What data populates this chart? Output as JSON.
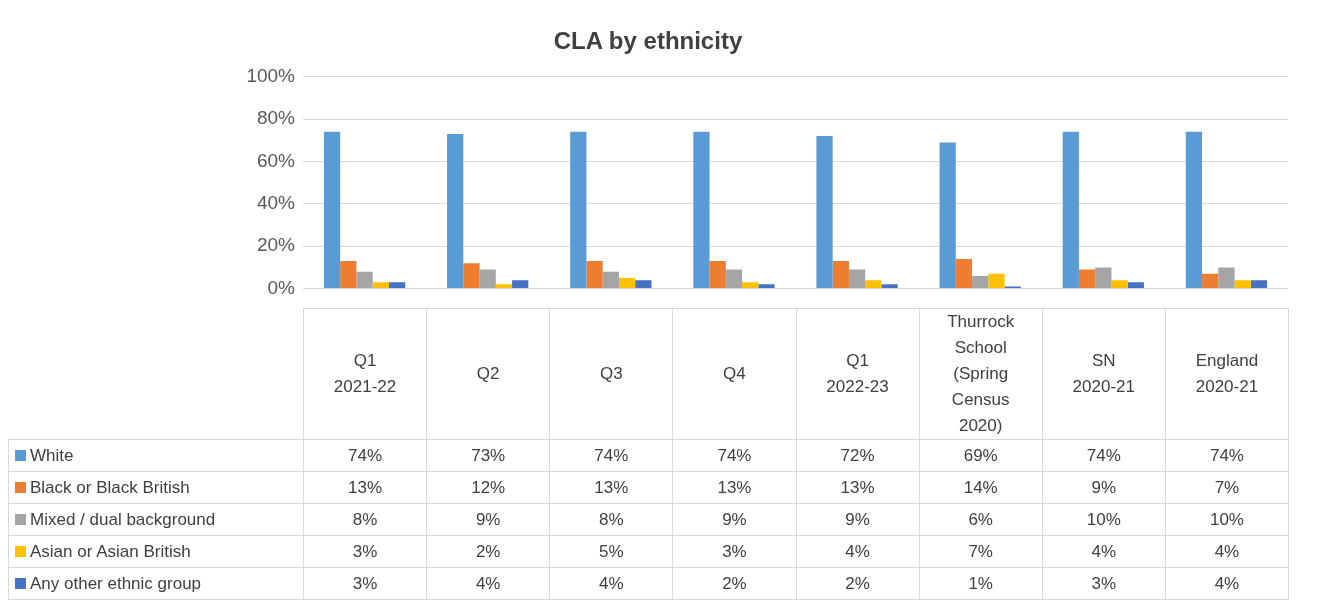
{
  "chart_data": {
    "type": "bar",
    "title": "CLA by ethnicity",
    "categories": [
      "Q1\n2021-22",
      "Q2",
      "Q3",
      "Q4",
      "Q1\n2022-23",
      "Thurrock\nSchool\n(Spring\nCensus\n2020)",
      "SN\n2020-21",
      "England\n2020-21"
    ],
    "series": [
      {
        "name": "White",
        "color": "#5b9bd5",
        "values": [
          74,
          73,
          74,
          74,
          72,
          69,
          74,
          74
        ],
        "value_labels": [
          "74%",
          "73%",
          "74%",
          "74%",
          "72%",
          "69%",
          "74%",
          "74%"
        ]
      },
      {
        "name": "Black or Black British",
        "color": "#ed7d31",
        "values": [
          13,
          12,
          13,
          13,
          13,
          14,
          9,
          7
        ],
        "value_labels": [
          "13%",
          "12%",
          "13%",
          "13%",
          "13%",
          "14%",
          "9%",
          "7%"
        ]
      },
      {
        "name": "Mixed / dual background",
        "color": "#a5a5a5",
        "values": [
          8,
          9,
          8,
          9,
          9,
          6,
          10,
          10
        ],
        "value_labels": [
          "8%",
          "9%",
          "8%",
          "9%",
          "9%",
          "6%",
          "10%",
          "10%"
        ]
      },
      {
        "name": "Asian or Asian British",
        "color": "#ffc000",
        "values": [
          3,
          2,
          5,
          3,
          4,
          7,
          4,
          4
        ],
        "value_labels": [
          "3%",
          "2%",
          "5%",
          "3%",
          "4%",
          "7%",
          "4%",
          "4%"
        ]
      },
      {
        "name": "Any other ethnic group",
        "color": "#4472c4",
        "values": [
          3,
          4,
          4,
          2,
          2,
          1,
          3,
          4
        ],
        "value_labels": [
          "3%",
          "4%",
          "4%",
          "2%",
          "2%",
          "1%",
          "3%",
          "4%"
        ]
      }
    ],
    "ylim": [
      0,
      100
    ],
    "yticks": [
      {
        "value": 0,
        "label": "0%"
      },
      {
        "value": 20,
        "label": "20%"
      },
      {
        "value": 40,
        "label": "40%"
      },
      {
        "value": 60,
        "label": "60%"
      },
      {
        "value": 80,
        "label": "80%"
      },
      {
        "value": 100,
        "label": "100%"
      }
    ],
    "grid": "y",
    "legend": "bottom left"
  }
}
